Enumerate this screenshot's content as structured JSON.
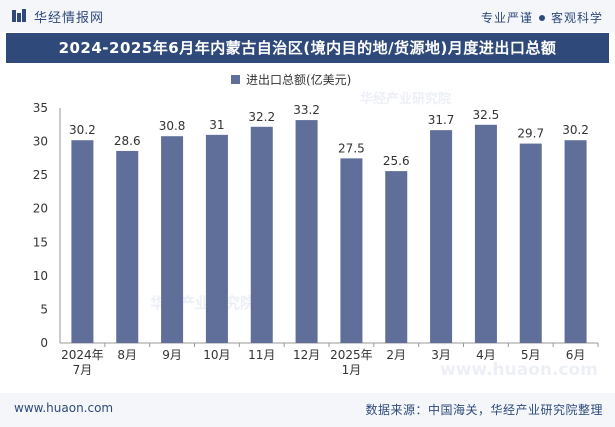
{
  "header": {
    "brand": "华经情报网",
    "tagline_left": "专业严谨",
    "tagline_right": "客观科学"
  },
  "title": "2024-2025年6月年内蒙古自治区(境内目的地/货源地)月度进出口总额",
  "chart_data": {
    "type": "bar",
    "categories": [
      "2024年\n7月",
      "8月",
      "9月",
      "10月",
      "11月",
      "12月",
      "2025年\n1月",
      "2月",
      "3月",
      "4月",
      "5月",
      "6月"
    ],
    "series": [
      {
        "name": "进出口总额(亿美元)",
        "values": [
          30.2,
          28.6,
          30.8,
          31,
          32.2,
          33.2,
          27.5,
          25.6,
          31.7,
          32.5,
          29.7,
          30.2
        ]
      }
    ],
    "value_labels": [
      "30.2",
      "28.6",
      "30.8",
      "31",
      "32.2",
      "33.2",
      "27.5",
      "25.6",
      "31.7",
      "32.5",
      "29.7",
      "30.2"
    ],
    "ylim": [
      0,
      35
    ],
    "yticks": [
      0,
      5,
      10,
      15,
      20,
      25,
      30,
      35
    ],
    "legend": "top-center",
    "bar_color": "#5f6f99"
  },
  "watermarks": [
    "华经产业研究院",
    "华经产业研究院",
    "www.huaon.com"
  ],
  "footer": {
    "website": "www.huaon.com",
    "source": "数据来源：中国海关，华经产业研究院整理"
  }
}
